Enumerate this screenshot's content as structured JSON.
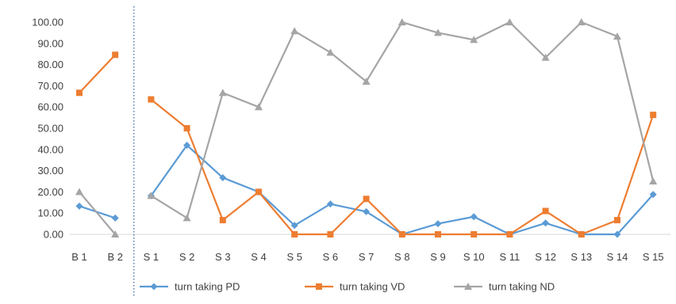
{
  "chart_data": {
    "type": "line",
    "categories": [
      "B 1",
      "B 2",
      "S 1",
      "S 2",
      "S 3",
      "S 4",
      "S 5",
      "S 6",
      "S 7",
      "S 8",
      "S 9",
      "S 10",
      "S 11",
      "S 12",
      "S 13",
      "S 14",
      "S 15"
    ],
    "series": [
      {
        "name": "turn taking PD",
        "color": "#5B9BD5",
        "marker": "diamond",
        "values": [
          13.3,
          7.7,
          18.2,
          42.0,
          26.7,
          20.0,
          4.2,
          14.3,
          10.7,
          0.0,
          5.0,
          8.3,
          0.0,
          5.3,
          0.0,
          0.0,
          18.8
        ]
      },
      {
        "name": "turn taking VD",
        "color": "#ED7D31",
        "marker": "square",
        "values": [
          66.7,
          84.6,
          63.6,
          50.0,
          6.7,
          20.0,
          0.0,
          0.0,
          16.7,
          0.0,
          0.0,
          0.0,
          0.0,
          11.0,
          0.0,
          6.7,
          56.3
        ]
      },
      {
        "name": "turn taking ND",
        "color": "#A5A5A5",
        "marker": "triangle",
        "values": [
          20.0,
          0.0,
          18.2,
          7.7,
          66.7,
          60.0,
          95.8,
          85.7,
          72.0,
          100.0,
          95.0,
          91.7,
          100.0,
          83.3,
          100.0,
          93.3,
          25.0
        ]
      }
    ],
    "y_ticks": [
      "0.00",
      "10.00",
      "20.00",
      "30.00",
      "40.00",
      "50.00",
      "60.00",
      "70.00",
      "80.00",
      "90.00",
      "100.00"
    ],
    "ylim": [
      0,
      100
    ],
    "phase_break_after": "B 2",
    "grid": false,
    "legend_position": "bottom",
    "title": "",
    "xlabel": "",
    "ylabel": ""
  }
}
